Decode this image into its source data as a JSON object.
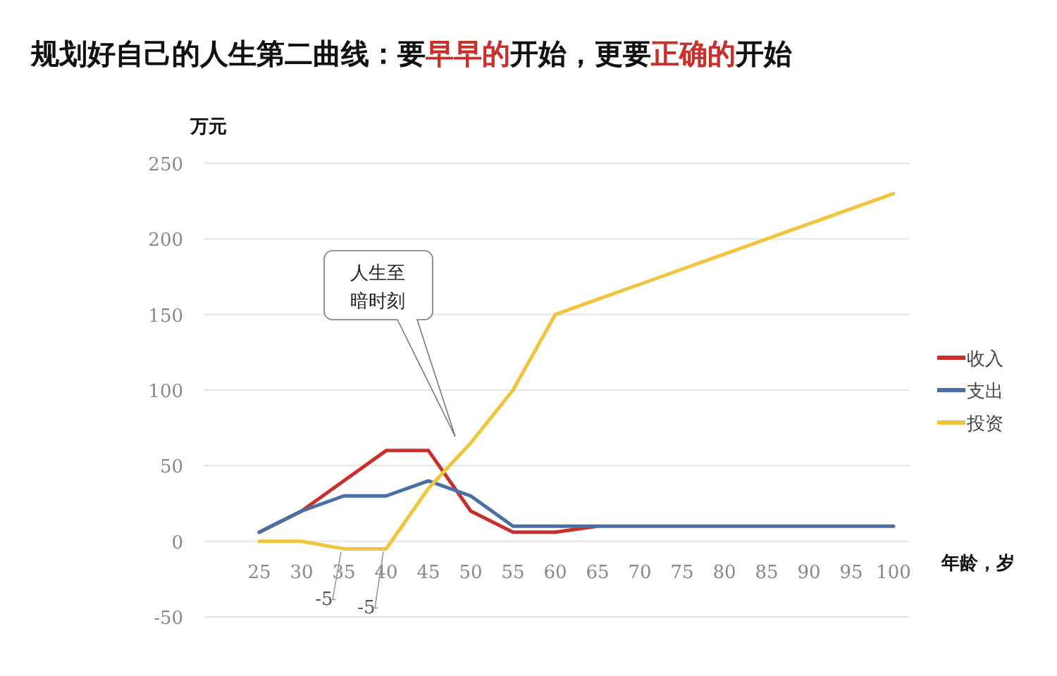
{
  "chart_data": {
    "type": "line",
    "title": "规划好自己的人生第二曲线：要**早早的**开始，更要**正确的**开始",
    "ylabel": "万元",
    "xlabel": "年龄，岁",
    "categories": [
      "25",
      "30",
      "35",
      "40",
      "45",
      "50",
      "55",
      "60",
      "65",
      "70",
      "75",
      "80",
      "85",
      "90",
      "95",
      "100"
    ],
    "series": [
      {
        "name": "收入",
        "color": "#c9302c",
        "values": [
          6,
          20,
          40,
          60,
          60,
          20,
          6,
          6,
          10,
          null,
          null,
          null,
          null,
          null,
          null,
          null
        ]
      },
      {
        "name": "支出",
        "color": "#4a6fa5",
        "values": [
          6,
          20,
          30,
          30,
          40,
          30,
          10,
          10,
          10,
          10,
          10,
          10,
          10,
          10,
          10,
          10
        ]
      },
      {
        "name": "投资",
        "color": "#f0c43c",
        "values": [
          0,
          0,
          -5,
          -5,
          35,
          65,
          100,
          150,
          160,
          170,
          180,
          190,
          200,
          210,
          220,
          230
        ],
        "value_labels": [
          null,
          null,
          "-5",
          "-5",
          null,
          null,
          null,
          null,
          null,
          null,
          null,
          null,
          null,
          null,
          null,
          null
        ]
      }
    ],
    "ylim": [
      -50,
      250
    ],
    "yticks": [
      -50,
      0,
      50,
      100,
      150,
      200,
      250
    ],
    "grid": "y",
    "legend": "right",
    "marker": "none",
    "line_style": "solid",
    "annotations": [
      "人生至暗时刻"
    ]
  }
}
